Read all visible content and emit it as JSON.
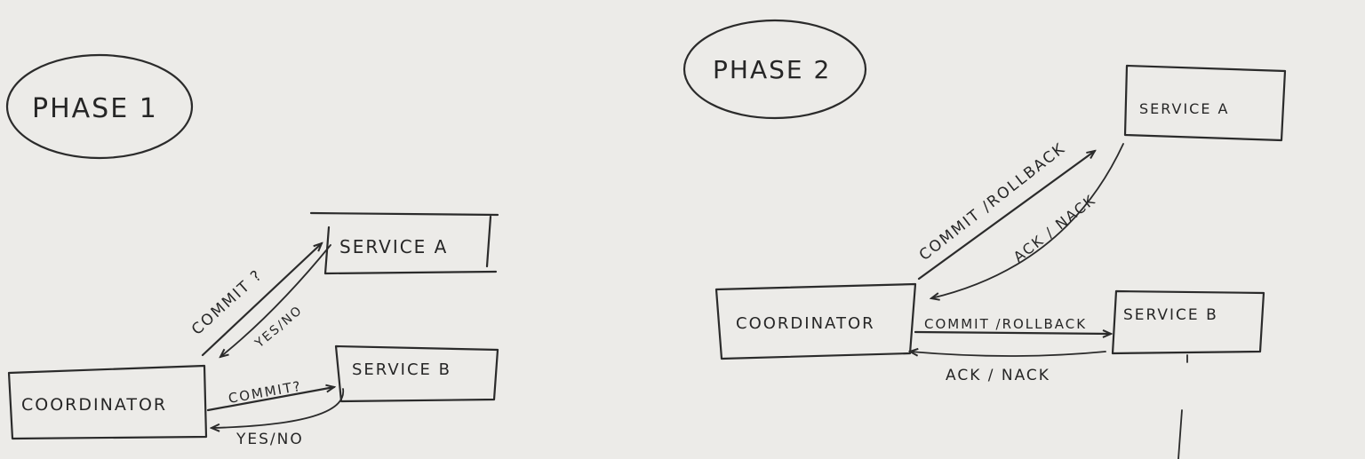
{
  "phase1": {
    "title": "PHASE 1",
    "coordinator": "COORDINATOR",
    "service_a": "SERVICE A",
    "service_b": "SERVICE B",
    "msg_commit_a": "COMMIT ?",
    "msg_reply_a": "YES/NO",
    "msg_commit_b": "COMMIT?",
    "msg_reply_b": "YES/NO"
  },
  "phase2": {
    "title": "PHASE 2",
    "coordinator": "COORDINATOR",
    "service_a": "SERVICE A",
    "service_b": "SERVICE B",
    "msg_commit_a": "COMMIT /ROLLBACK",
    "msg_reply_a": "ACK / NACK",
    "msg_commit_b": "COMMIT /ROLLBACK",
    "msg_reply_b": "ACK / NACK"
  },
  "colors": {
    "paper": "#ecebe8",
    "ink": "#2b2b2b"
  }
}
